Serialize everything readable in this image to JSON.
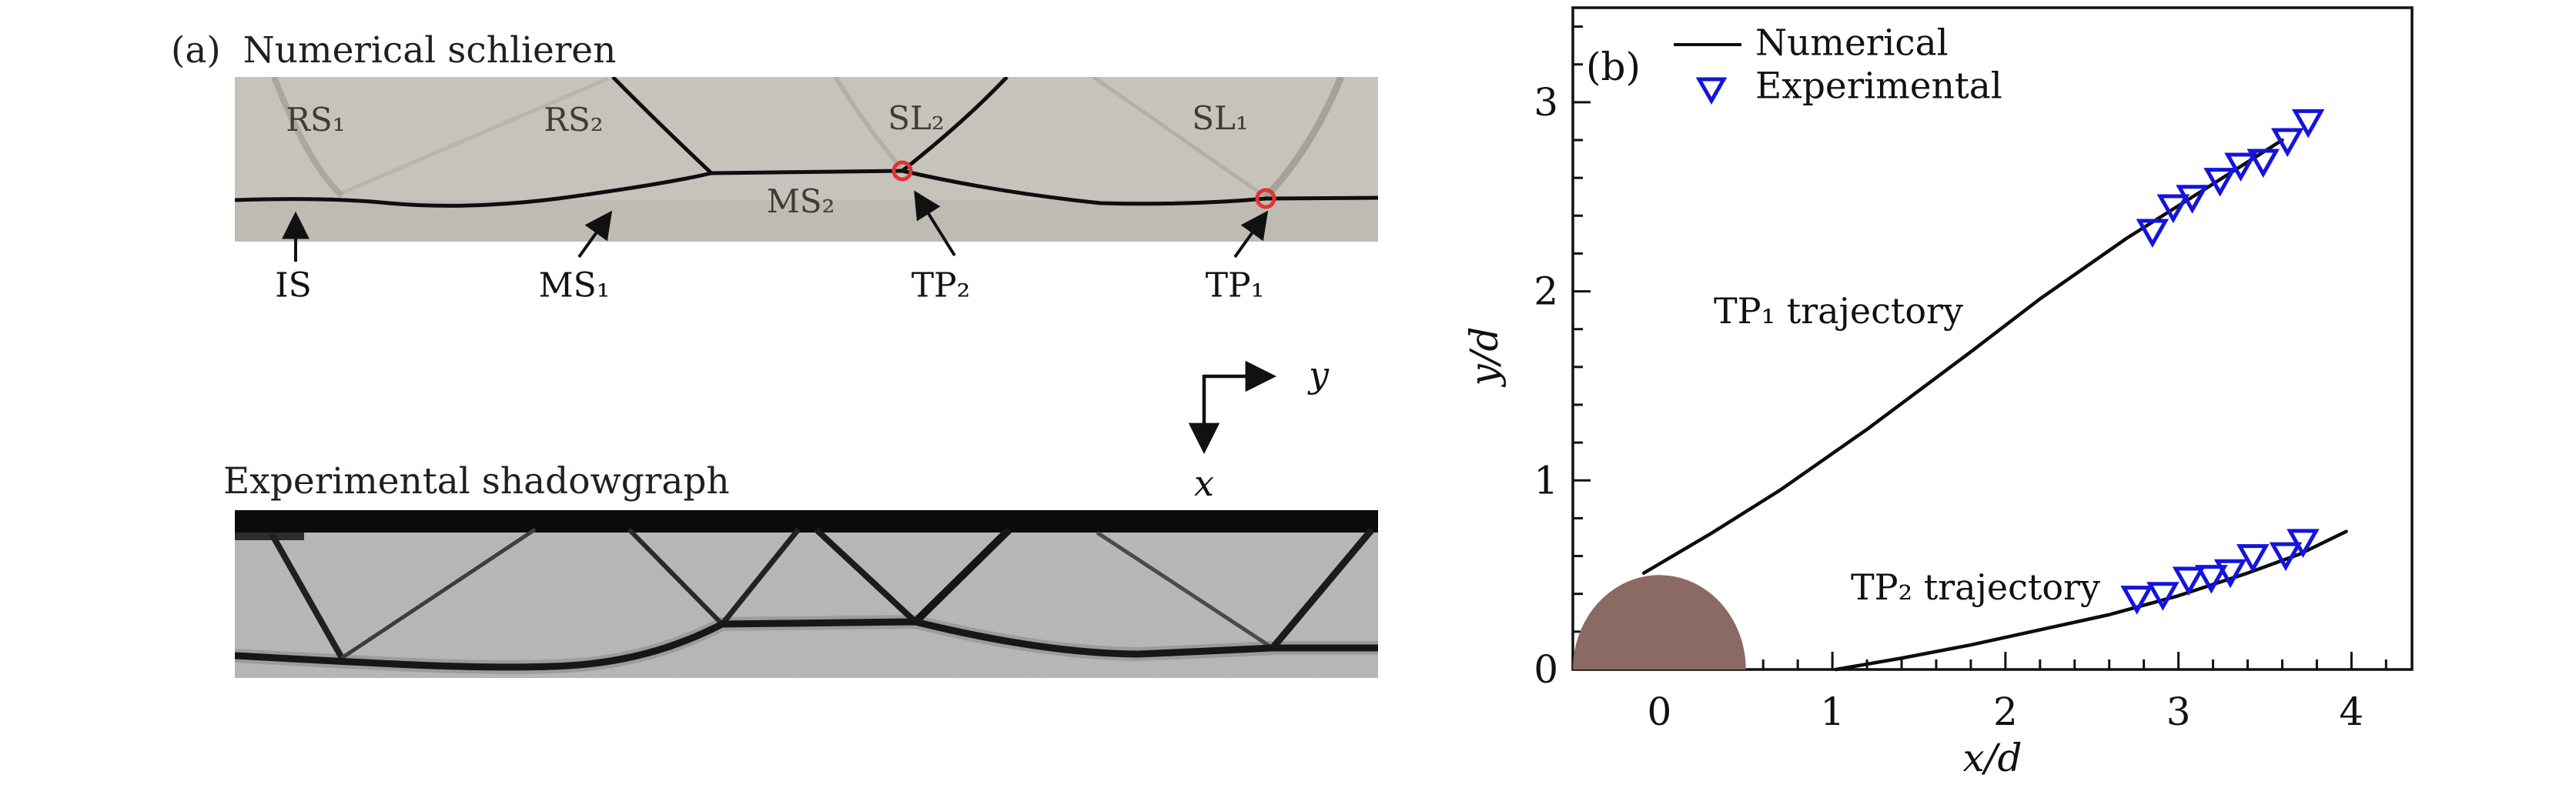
{
  "panel_a": {
    "tag": "(a)",
    "title": "Numerical schlieren",
    "shadowgraph_title": "Experimental shadowgraph",
    "schlieren_labels": {
      "rs1": "RS₁",
      "rs2": "RS₂",
      "sl2": "SL₂",
      "sl1": "SL₁",
      "ms2": "MS₂"
    },
    "annotations": {
      "is": "IS",
      "ms1": "MS₁",
      "tp2": "TP₂",
      "tp1": "TP₁"
    },
    "axis_glyph": {
      "right": "y",
      "down": "x"
    },
    "triple_point_marker_color": "#e03333",
    "schlieren_background": "#c6c3bb"
  },
  "panel_b": {
    "tag": "(b)",
    "legend": {
      "numerical": "Numerical",
      "experimental": "Experimental"
    },
    "labels": {
      "tp1": "TP₁ trajectory",
      "tp2": "TP₂ trajectory"
    }
  },
  "chart_data": {
    "type": "line+scatter",
    "xlabel": "x/d",
    "ylabel": "y/d",
    "xlim": [
      -0.5,
      4.35
    ],
    "ylim": [
      0,
      3.5
    ],
    "xticks": [
      0,
      1,
      2,
      3,
      4
    ],
    "yticks": [
      0,
      1,
      2,
      3
    ],
    "minor_tick_step": 0.2,
    "grid": false,
    "legend_position": "top-left",
    "frame_color": "#111111",
    "cylinder": {
      "cx": 0,
      "cy": 0,
      "r": 0.5,
      "color": "#8a6a63"
    },
    "series": [
      {
        "name": "TP1 numerical",
        "type": "line",
        "color": "#0d0d0d",
        "points": [
          [
            -0.09,
            0.51
          ],
          [
            0.3,
            0.72
          ],
          [
            0.7,
            0.95
          ],
          [
            1.2,
            1.27
          ],
          [
            1.8,
            1.68
          ],
          [
            2.2,
            1.96
          ],
          [
            2.7,
            2.28
          ],
          [
            3.1,
            2.51
          ],
          [
            3.6,
            2.8
          ]
        ]
      },
      {
        "name": "TP2 numerical",
        "type": "line",
        "color": "#0d0d0d",
        "points": [
          [
            1.02,
            0.0
          ],
          [
            1.4,
            0.06
          ],
          [
            1.8,
            0.13
          ],
          [
            2.2,
            0.21
          ],
          [
            2.6,
            0.29
          ],
          [
            3.0,
            0.39
          ],
          [
            3.4,
            0.51
          ],
          [
            3.7,
            0.61
          ],
          [
            3.97,
            0.73
          ]
        ]
      },
      {
        "name": "TP1 experimental",
        "type": "scatter",
        "marker": "triangle-down-open",
        "color": "#1414dd",
        "points": [
          [
            2.85,
            2.32
          ],
          [
            2.97,
            2.45
          ],
          [
            3.08,
            2.5
          ],
          [
            3.24,
            2.59
          ],
          [
            3.36,
            2.67
          ],
          [
            3.49,
            2.69
          ],
          [
            3.63,
            2.8
          ],
          [
            3.75,
            2.9
          ]
        ]
      },
      {
        "name": "TP2 experimental",
        "type": "scatter",
        "marker": "triangle-down-open",
        "color": "#1414dd",
        "points": [
          [
            2.76,
            0.38
          ],
          [
            2.91,
            0.4
          ],
          [
            3.06,
            0.48
          ],
          [
            3.19,
            0.49
          ],
          [
            3.3,
            0.52
          ],
          [
            3.43,
            0.6
          ],
          [
            3.62,
            0.61
          ],
          [
            3.72,
            0.68
          ]
        ]
      }
    ]
  }
}
